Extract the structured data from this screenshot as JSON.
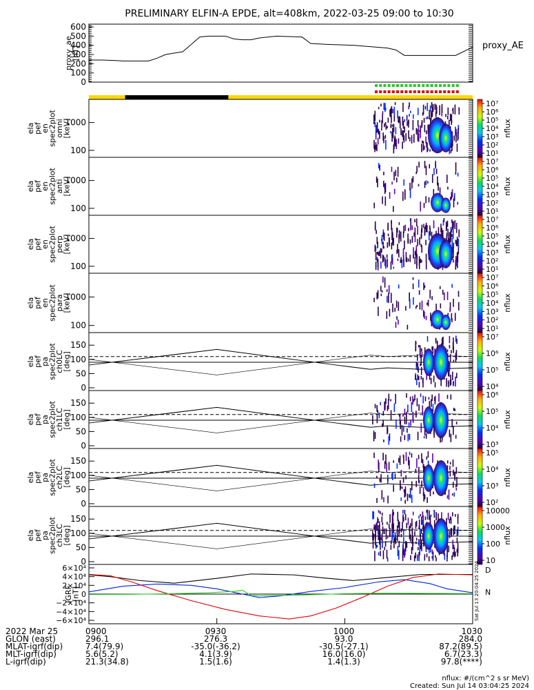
{
  "title": "PRELIMINARY ELFIN-A EPDE, alt=408km, 2022-03-25 09:00 to 10:30",
  "colors": {
    "axis": "#000000",
    "bar_yellow": "#ffd700",
    "bar_black": "#000000",
    "flag_green": "#22cc22",
    "flag_red": "#dd0000",
    "grf_black": "#000000",
    "grf_blue": "#0022dd",
    "grf_red": "#dd0000",
    "grf_green": "#22cc22"
  },
  "chart_data": [
    {
      "type": "line",
      "name": "ae",
      "ylabel_lines": [
        "proxy_ae",
        "[nT]"
      ],
      "right_label": "proxy_AE",
      "ylim": [
        0,
        600
      ],
      "yticks": [
        "0",
        "100",
        "200",
        "300",
        "400",
        "500",
        "600"
      ],
      "x": [
        0,
        3,
        6,
        8,
        10,
        12,
        14,
        16,
        18,
        22,
        24,
        26,
        28,
        30,
        32,
        34,
        36,
        38,
        40,
        44,
        50,
        52,
        56,
        62,
        70,
        72,
        74,
        76,
        78,
        80,
        82,
        84,
        86,
        90
      ],
      "values": [
        240,
        240,
        235,
        230,
        230,
        230,
        230,
        260,
        300,
        330,
        410,
        490,
        500,
        500,
        500,
        470,
        460,
        460,
        480,
        500,
        490,
        420,
        410,
        400,
        370,
        350,
        290,
        290,
        290,
        290,
        290,
        290,
        290,
        380
      ]
    },
    {
      "type": "heatmap",
      "name": "omni",
      "ylabel_lines": [
        "ela",
        "pef",
        "en",
        "spec2plot",
        "omni",
        "[keV]"
      ],
      "yticks": [
        "100",
        "1000"
      ],
      "colorbar": [
        "10⁷",
        "10⁶",
        "10⁵",
        "10⁴",
        "10³",
        "10²",
        "10¹"
      ],
      "colorbar_label": "nflux"
    },
    {
      "type": "heatmap",
      "name": "anti",
      "ylabel_lines": [
        "ela",
        "pef",
        "en",
        "spec2plot",
        "anti",
        "[keV]"
      ],
      "yticks": [
        "100",
        "1000"
      ],
      "colorbar": [
        "10⁷",
        "10⁶",
        "10⁵",
        "10⁴",
        "10³",
        "10²",
        "10¹"
      ],
      "colorbar_label": "nflux"
    },
    {
      "type": "heatmap",
      "name": "perp",
      "ylabel_lines": [
        "ela",
        "pef",
        "en",
        "spec2plot",
        "perp",
        "[keV]"
      ],
      "yticks": [
        "100",
        "1000"
      ],
      "colorbar": [
        "10⁷",
        "10⁶",
        "10⁵",
        "10⁴",
        "10³",
        "10²",
        "10¹"
      ],
      "colorbar_label": "nflux"
    },
    {
      "type": "heatmap",
      "name": "para",
      "ylabel_lines": [
        "ela",
        "pef",
        "en",
        "spec2plot",
        "para",
        "[keV]"
      ],
      "yticks": [
        "100",
        "1000"
      ],
      "colorbar": [
        "10⁷",
        "10⁶",
        "10⁵",
        "10⁴",
        "10³",
        "10²",
        "10¹"
      ],
      "colorbar_label": "nflux"
    },
    {
      "type": "heatmap",
      "name": "ch0LC",
      "ylabel_lines": [
        "ela",
        "pef",
        "pa",
        "spec2plot",
        "ch0LC",
        "[deg]"
      ],
      "yticks": [
        "0",
        "50",
        "100",
        "150"
      ],
      "colorbar": [
        "10⁷",
        "10⁶",
        "10⁵",
        "10⁴"
      ],
      "colorbar_label": "nflux"
    },
    {
      "type": "heatmap",
      "name": "ch1LC",
      "ylabel_lines": [
        "ela",
        "pef",
        "pa",
        "spec2plot",
        "ch1LC",
        "[deg]"
      ],
      "yticks": [
        "0",
        "50",
        "100",
        "150"
      ],
      "colorbar": [
        "10⁶",
        "10⁵",
        "10⁴",
        "10³"
      ],
      "colorbar_label": "nflux"
    },
    {
      "type": "heatmap",
      "name": "ch2LC",
      "ylabel_lines": [
        "ela",
        "pef",
        "pa",
        "spec2plot",
        "ch2LC",
        "[deg]"
      ],
      "yticks": [
        "0",
        "50",
        "100",
        "150"
      ],
      "colorbar": [
        "10⁵",
        "10⁴",
        "10³",
        "10²"
      ],
      "colorbar_label": "nflux"
    },
    {
      "type": "heatmap",
      "name": "ch3LC",
      "ylabel_lines": [
        "ela",
        "pef",
        "pa",
        "spec2plot",
        "ch3LC",
        "[deg]"
      ],
      "yticks": [
        "0",
        "50",
        "100",
        "150"
      ],
      "colorbar": [
        "10000",
        "1000",
        "100",
        "10"
      ],
      "colorbar_label": "nflux"
    },
    {
      "type": "line",
      "name": "igrf",
      "ylabel_lines": [
        "IGRF",
        "[nT]"
      ],
      "yticks": [
        "6×10⁴",
        "4×10⁴",
        "2×10⁴",
        "0",
        "−2×10⁴",
        "−4×10⁴",
        "−6×10⁴"
      ],
      "ylim": [
        -60000,
        60000
      ],
      "right_markers": [
        "D",
        "N"
      ],
      "side_note": "Sat Jul 13 20:04:25 2024",
      "series": [
        {
          "color": "#000000",
          "x": [
            0,
            5,
            12,
            20,
            30,
            38,
            48,
            55,
            62,
            70,
            78,
            90
          ],
          "values": [
            44000,
            40000,
            31000,
            25000,
            36000,
            46000,
            44000,
            37000,
            31000,
            38000,
            45000,
            45000
          ]
        },
        {
          "color": "#0022dd",
          "x": [
            0,
            8,
            16,
            24,
            30,
            34,
            37,
            40,
            45,
            52,
            60,
            68,
            74,
            80,
            84,
            90
          ],
          "values": [
            5000,
            18000,
            23000,
            20000,
            12000,
            4000,
            -2000,
            -8000,
            -4000,
            6000,
            15000,
            28000,
            33000,
            24000,
            12000,
            3000
          ]
        },
        {
          "color": "#dd0000",
          "x": [
            0,
            5,
            10,
            16,
            24,
            32,
            40,
            47,
            52,
            58,
            64,
            70,
            76,
            82,
            86,
            90
          ],
          "values": [
            45000,
            42000,
            28000,
            8000,
            -15000,
            -35000,
            -50000,
            -57000,
            -50000,
            -32000,
            -8000,
            18000,
            38000,
            46000,
            45000,
            44000
          ]
        },
        {
          "color": "#22cc22",
          "x": [
            0,
            10,
            20,
            28,
            34,
            36,
            37,
            38,
            40,
            50,
            60,
            70,
            80,
            90
          ],
          "values": [
            -1000,
            -500,
            1000,
            3000,
            6000,
            9000,
            3000,
            -3000,
            -4000,
            -2000,
            1000,
            2000,
            1500,
            1000
          ]
        }
      ]
    }
  ],
  "x_labels": [
    "0900",
    "0930",
    "1000",
    "1030"
  ],
  "orbit_rows": [
    {
      "label": "2022 Mar 25",
      "values": [
        "0900",
        "0930",
        "1000",
        "1030"
      ]
    },
    {
      "label": "GLON (east)",
      "values": [
        "296.1",
        "276.3",
        "93.0",
        "284.0"
      ]
    },
    {
      "label": "MLAT-igrf(dip)",
      "values": [
        "7.4(79.9)",
        "-35.0(-36.2)",
        "-30.5(-27.1)",
        "87.2(89.5)"
      ]
    },
    {
      "label": "MLT-igrf(dip)",
      "values": [
        "5.6(5.2)",
        "4.1(3.9)",
        "16.0(16.0)",
        "6.7(23.3)"
      ]
    },
    {
      "label": "L-igrf(dip)",
      "values": [
        "21.3(34.8)",
        "1.5(1.6)",
        "1.4(1.3)",
        "97.8(****)"
      ]
    }
  ],
  "footer": {
    "units": "nflux: #/(cm^2 s sr MeV)",
    "created": "Created: Sun Jul 14 03:04:25 2024"
  }
}
